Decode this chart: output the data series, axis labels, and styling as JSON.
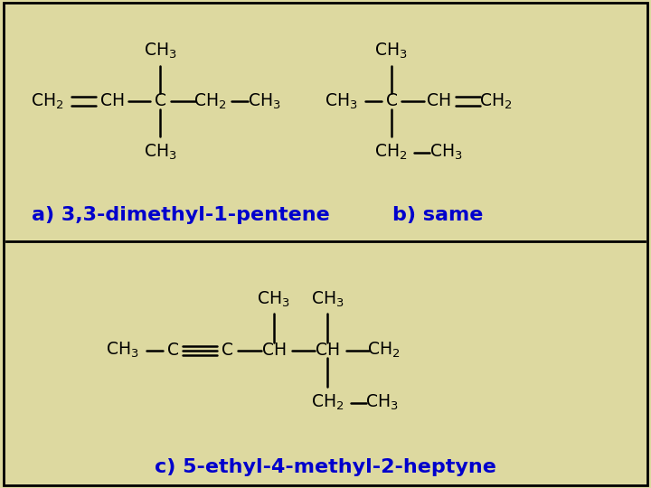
{
  "background_color": "#ddd9a0",
  "border_color": "#000000",
  "text_color_black": "#000000",
  "text_color_blue": "#0000cc",
  "font_size_main": 15,
  "font_size_label": 16,
  "label_a": "a) 3,3-dimethyl-1-pentene",
  "label_b": "b) same",
  "label_c": "c) 5-ethyl-4-methyl-2-heptyne"
}
